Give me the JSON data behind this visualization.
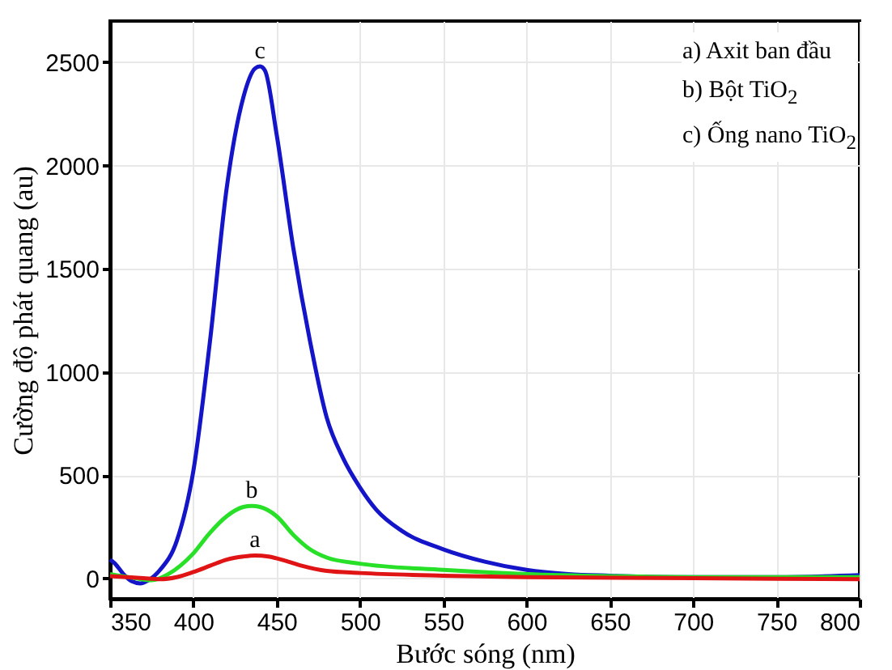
{
  "chart_data": {
    "type": "line",
    "xlabel": "Bước sóng (nm)",
    "ylabel": "Cường độ phát quang (au)",
    "xlim": [
      350,
      800
    ],
    "xticks": [
      350,
      400,
      450,
      500,
      550,
      600,
      650,
      700,
      750,
      800
    ],
    "ylim": [
      -100,
      2700
    ],
    "yticks": [
      0,
      500,
      1000,
      1500,
      2000,
      2500
    ],
    "grid": true,
    "line_style": "solid",
    "annotations": [
      "a) Axit ban đầu",
      "b) Bột TiO$_{2}$",
      "c) Ống nano TiO$_{2}$"
    ],
    "series": [
      {
        "name": "c",
        "color": "#1414c8",
        "x": [
          350,
          353,
          358,
          363,
          368,
          373,
          380,
          390,
          400,
          410,
          420,
          430,
          437,
          440,
          443,
          450,
          460,
          470,
          480,
          490,
          500,
          510,
          525,
          550,
          575,
          600,
          625,
          650,
          700,
          750,
          800
        ],
        "values": [
          90,
          70,
          20,
          -15,
          -25,
          -10,
          40,
          180,
          520,
          1150,
          1890,
          2330,
          2470,
          2480,
          2460,
          2150,
          1600,
          1150,
          780,
          580,
          440,
          330,
          230,
          140,
          80,
          40,
          20,
          12,
          5,
          5,
          15
        ]
      },
      {
        "name": "b",
        "color": "#28e028",
        "x": [
          350,
          365,
          375,
          385,
          400,
          410,
          420,
          430,
          435,
          440,
          450,
          460,
          470,
          480,
          500,
          550,
          600,
          650,
          700,
          800
        ],
        "values": [
          20,
          0,
          -10,
          20,
          120,
          220,
          300,
          345,
          350,
          345,
          300,
          210,
          140,
          100,
          70,
          40,
          20,
          10,
          5,
          5
        ]
      },
      {
        "name": "a",
        "color": "#e01414",
        "x": [
          350,
          370,
          380,
          390,
          400,
          410,
          420,
          430,
          437,
          445,
          455,
          465,
          480,
          500,
          550,
          600,
          700,
          800
        ],
        "values": [
          10,
          0,
          -5,
          5,
          30,
          60,
          90,
          105,
          110,
          105,
          85,
          60,
          35,
          25,
          12,
          5,
          0,
          -5
        ]
      }
    ]
  }
}
